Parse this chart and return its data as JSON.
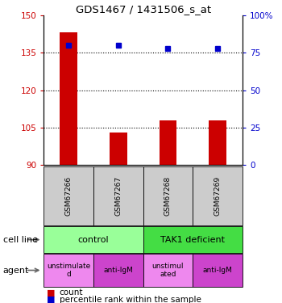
{
  "title": "GDS1467 / 1431506_s_at",
  "samples": [
    "GSM67266",
    "GSM67267",
    "GSM67268",
    "GSM67269"
  ],
  "bar_values": [
    143,
    103,
    108,
    108
  ],
  "bar_baseline": 90,
  "dot_values_pct": [
    80,
    80,
    78,
    78
  ],
  "left_ylim": [
    90,
    150
  ],
  "left_yticks": [
    90,
    105,
    120,
    135,
    150
  ],
  "right_ylim": [
    0,
    100
  ],
  "right_yticks": [
    0,
    25,
    50,
    75,
    100
  ],
  "right_yticklabels": [
    "0",
    "25",
    "50",
    "75",
    "100%"
  ],
  "bar_color": "#cc0000",
  "dot_color": "#0000cc",
  "cell_line_groups": [
    {
      "label": "control",
      "cols": [
        0,
        1
      ],
      "color": "#99ff99"
    },
    {
      "label": "TAK1 deficient",
      "cols": [
        2,
        3
      ],
      "color": "#44dd44"
    }
  ],
  "agent_row": [
    "unstimulate\nd",
    "anti-IgM",
    "unstimul\nated",
    "anti-IgM"
  ],
  "agent_colors": [
    "#ee88ee",
    "#cc44cc",
    "#ee88ee",
    "#cc44cc"
  ],
  "sample_box_color": "#cccccc",
  "left_tick_color": "#cc0000",
  "right_tick_color": "#0000cc",
  "legend_count_label": "count",
  "legend_pct_label": "percentile rank within the sample",
  "gridline_values": [
    105,
    120,
    135
  ],
  "hgrid_color": "black",
  "hgrid_style": "dotted",
  "hgrid_lw": 0.8
}
